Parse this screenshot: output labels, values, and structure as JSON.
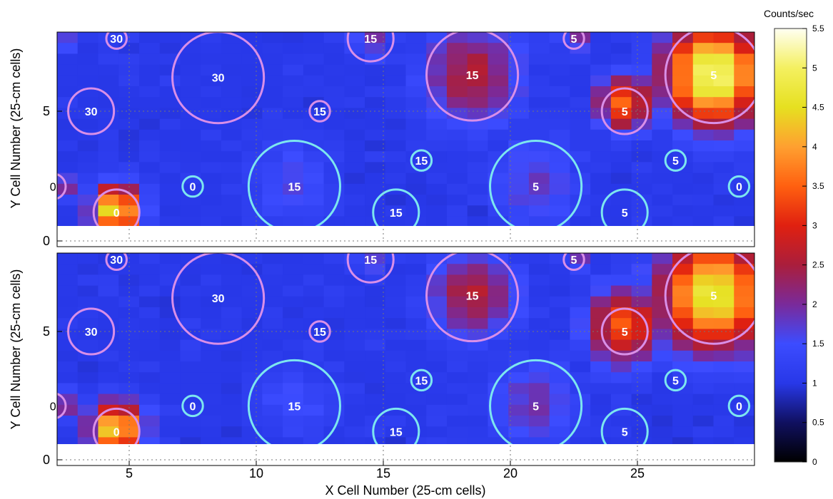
{
  "chart_data": {
    "type": "heatmap",
    "colorbar": {
      "title": "Counts/sec",
      "ticks": [
        "0",
        "0.5",
        "1",
        "1.5",
        "2",
        "2.5",
        "3",
        "3.5",
        "4",
        "4.5",
        "5",
        "5.5"
      ],
      "range": [
        0,
        5.5
      ],
      "colormap": [
        "#000000",
        "#101060",
        "#2838e8",
        "#3c4cff",
        "#7a2a9a",
        "#aa1e3c",
        "#e02010",
        "#ff6010",
        "#ffa030",
        "#e6e020",
        "#f4f060",
        "#fffff2"
      ]
    },
    "xlabel": "X Cell Number (25-cm cells)",
    "x_ticks": [
      5,
      10,
      15,
      20,
      25
    ],
    "x_range": [
      2,
      29.5
    ],
    "panels": [
      {
        "name": "top",
        "ylabel": "Y Cell Number (25-cm cells)",
        "y_ticks": [
          0,
          5
        ],
        "y_range": [
          0,
          9
        ],
        "hotspots": [
          {
            "x": 28,
            "y": 6.4,
            "value": 5.2,
            "radius": 1.8
          },
          {
            "x": 18.5,
            "y": 6.4,
            "value": 2.6,
            "radius": 1.8
          },
          {
            "x": 24.5,
            "y": 5.3,
            "value": 3.6,
            "radius": 1.0
          },
          {
            "x": 4.5,
            "y": 1.2,
            "value": 4.8,
            "radius": 0.9
          },
          {
            "x": 2.1,
            "y": 7.7,
            "value": 3.8,
            "radius": 0.4
          },
          {
            "x": 2.1,
            "y": 2.1,
            "value": 3.4,
            "radius": 0.5
          },
          {
            "x": 21,
            "y": 2.3,
            "value": 1.8,
            "radius": 1.7
          },
          {
            "x": 11.5,
            "y": 2.3,
            "value": 1.6,
            "radius": 1.6
          },
          {
            "x": 22.5,
            "y": 7.8,
            "value": 2.2,
            "radius": 0.5
          },
          {
            "x": 14.5,
            "y": 7.8,
            "value": 1.9,
            "radius": 0.8
          }
        ]
      },
      {
        "name": "bottom",
        "ylabel": "Y Cell Number (25-cm cells)",
        "y_ticks": [
          0,
          5
        ],
        "y_range": [
          0,
          9
        ],
        "hotspots": [
          {
            "x": 28,
            "y": 6.4,
            "value": 4.8,
            "radius": 2.0
          },
          {
            "x": 18.5,
            "y": 6.4,
            "value": 2.6,
            "radius": 1.6
          },
          {
            "x": 24.5,
            "y": 5.2,
            "value": 3.4,
            "radius": 1.4
          },
          {
            "x": 4.5,
            "y": 1.2,
            "value": 4.6,
            "radius": 1.0
          },
          {
            "x": 2.1,
            "y": 2.1,
            "value": 2.8,
            "radius": 0.6
          },
          {
            "x": 21,
            "y": 2.2,
            "value": 1.9,
            "radius": 1.6
          },
          {
            "x": 11.5,
            "y": 2.2,
            "value": 1.5,
            "radius": 1.6
          },
          {
            "x": 22.5,
            "y": 7.8,
            "value": 2.0,
            "radius": 0.5
          },
          {
            "x": 14.5,
            "y": 7.8,
            "value": 1.7,
            "radius": 0.8
          }
        ]
      }
    ],
    "circles": [
      {
        "x": 2.0,
        "y": 2.1,
        "r": 0.5,
        "label": "0",
        "color": "#d98fe8"
      },
      {
        "x": 4.5,
        "y": 1.1,
        "r": 0.9,
        "label": "0",
        "color": "#d98fe8"
      },
      {
        "x": 3.5,
        "y": 5.0,
        "r": 0.9,
        "label": "30",
        "color": "#d98fe8"
      },
      {
        "x": 4.5,
        "y": 7.8,
        "r": 0.4,
        "label": "30",
        "color": "#d98fe8"
      },
      {
        "x": 8.5,
        "y": 6.3,
        "r": 1.8,
        "label": "30",
        "color": "#d98fe8"
      },
      {
        "x": 12.5,
        "y": 5.0,
        "r": 0.4,
        "label": "15",
        "color": "#d98fe8"
      },
      {
        "x": 14.5,
        "y": 7.8,
        "r": 0.9,
        "label": "15",
        "color": "#d98fe8"
      },
      {
        "x": 18.5,
        "y": 6.4,
        "r": 1.8,
        "label": "15",
        "color": "#d98fe8"
      },
      {
        "x": 22.5,
        "y": 7.8,
        "r": 0.4,
        "label": "5",
        "color": "#d98fe8"
      },
      {
        "x": 24.5,
        "y": 5.0,
        "r": 0.9,
        "label": "5",
        "color": "#d98fe8"
      },
      {
        "x": 28.0,
        "y": 6.4,
        "r": 1.9,
        "label": "5",
        "color": "#d98fe8"
      },
      {
        "x": 7.5,
        "y": 2.1,
        "r": 0.4,
        "label": "0",
        "color": "#7de6ef"
      },
      {
        "x": 11.5,
        "y": 2.1,
        "r": 1.8,
        "label": "15",
        "color": "#7de6ef"
      },
      {
        "x": 15.5,
        "y": 1.1,
        "r": 0.9,
        "label": "15",
        "color": "#7de6ef"
      },
      {
        "x": 16.5,
        "y": 3.1,
        "r": 0.4,
        "label": "15",
        "color": "#7de6ef"
      },
      {
        "x": 21.0,
        "y": 2.1,
        "r": 1.8,
        "label": "5",
        "color": "#7de6ef"
      },
      {
        "x": 24.5,
        "y": 1.1,
        "r": 0.9,
        "label": "5",
        "color": "#7de6ef"
      },
      {
        "x": 26.5,
        "y": 3.1,
        "r": 0.4,
        "label": "5",
        "color": "#7de6ef"
      },
      {
        "x": 29.0,
        "y": 2.1,
        "r": 0.4,
        "label": "0",
        "color": "#7de6ef"
      }
    ],
    "grid": "dotted"
  }
}
